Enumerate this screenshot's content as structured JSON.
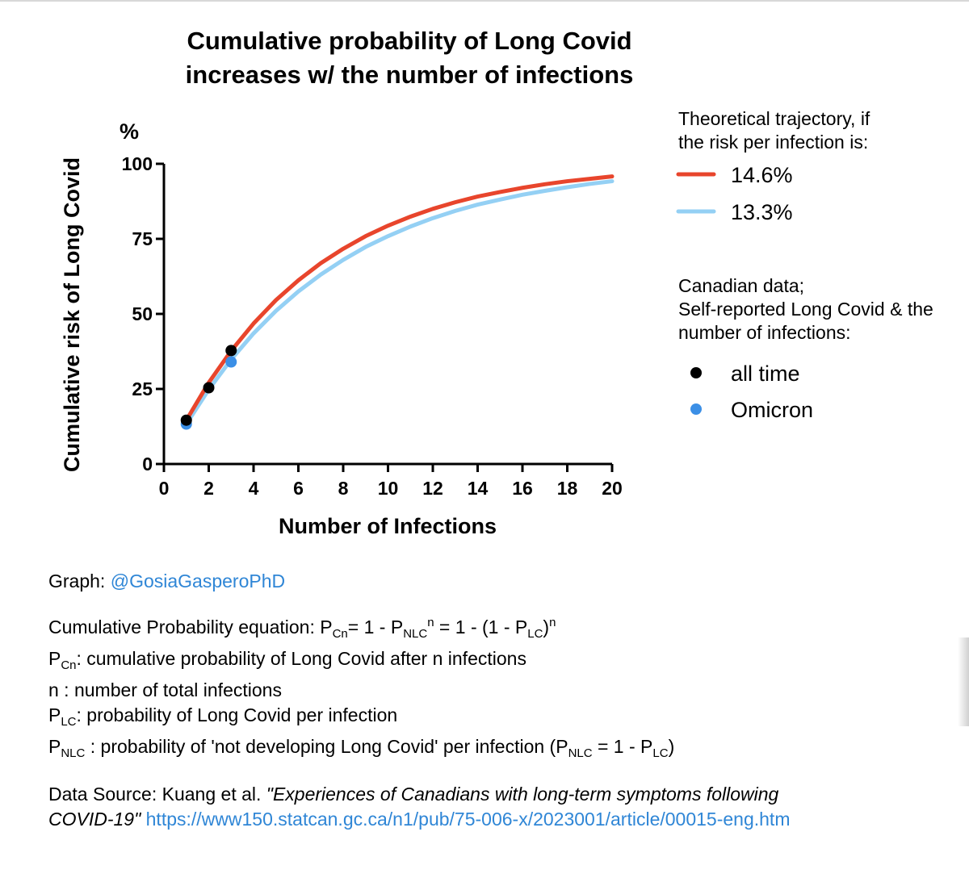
{
  "chart_data": {
    "type": "line",
    "title": "Cumulative probability of Long Covid",
    "subtitle": "increases w/ the number of infections",
    "xlabel": "Number of Infections",
    "ylabel": "Cumulative risk of Long Covid",
    "y_unit": "%",
    "xlim": [
      0,
      20
    ],
    "ylim": [
      0,
      100
    ],
    "x_ticks": [
      0,
      2,
      4,
      6,
      8,
      10,
      12,
      14,
      16,
      18,
      20
    ],
    "y_ticks": [
      0,
      25,
      50,
      75,
      100
    ],
    "grid": false,
    "legend_placement": "right",
    "line_legend_title": [
      "Theoretical trajectory, if",
      "the risk per infection is:"
    ],
    "series": [
      {
        "name": "14.6%",
        "type": "line",
        "risk_per_infection": 0.146,
        "color": "#e8452c",
        "x": [
          1,
          2,
          3,
          4,
          5,
          6,
          7,
          8,
          9,
          10,
          11,
          12,
          13,
          14,
          15,
          16,
          17,
          18,
          19,
          20
        ],
        "y": [
          14.6,
          27.1,
          37.7,
          46.8,
          54.6,
          61.2,
          66.9,
          71.7,
          75.9,
          79.4,
          82.4,
          85.0,
          87.2,
          89.1,
          90.6,
          92.0,
          93.2,
          94.2,
          95.0,
          95.8
        ]
      },
      {
        "name": "13.3%",
        "type": "line",
        "risk_per_infection": 0.133,
        "color": "#94d0f4",
        "x": [
          1,
          2,
          3,
          4,
          5,
          6,
          7,
          8,
          9,
          10,
          11,
          12,
          13,
          14,
          15,
          16,
          17,
          18,
          19,
          20
        ],
        "y": [
          13.3,
          24.8,
          34.8,
          43.5,
          51.0,
          57.5,
          63.1,
          68.0,
          72.3,
          75.9,
          79.1,
          81.9,
          84.3,
          86.4,
          88.1,
          89.7,
          91.0,
          92.2,
          93.3,
          94.2
        ]
      }
    ],
    "points_legend_title": [
      "Canadian data;",
      "Self-reported Long Covid & the",
      "number of infections:"
    ],
    "points": [
      {
        "name": "all time",
        "color": "#000000",
        "x": [
          1,
          2,
          3
        ],
        "y": [
          14.6,
          25.4,
          37.8
        ]
      },
      {
        "name": "Omicron",
        "color": "#3b8fe6",
        "x": [
          1,
          3
        ],
        "y": [
          13.3,
          34.0
        ]
      }
    ]
  },
  "notes": {
    "graph_label": "Graph: ",
    "graph_handle": "@GosiaGasperoPhD",
    "eq_label": "Cumulative Probability equation: ",
    "desc_pcn": ": cumulative probability of Long Covid after n infections",
    "desc_n": "n : number of total infections",
    "desc_plc": ": probability of Long Covid per infection",
    "desc_pnlc": " : probability of 'not developing Long Covid' per infection (",
    "source_label": "Data Source: Kuang et al. ",
    "source_title_1": "\"Experiences of Canadians with long-term symptoms following",
    "source_title_2": "COVID-19\"",
    "source_url": "https://www150.statcan.gc.ca/n1/pub/75-006-x/2023001/article/00015-eng.htm"
  }
}
